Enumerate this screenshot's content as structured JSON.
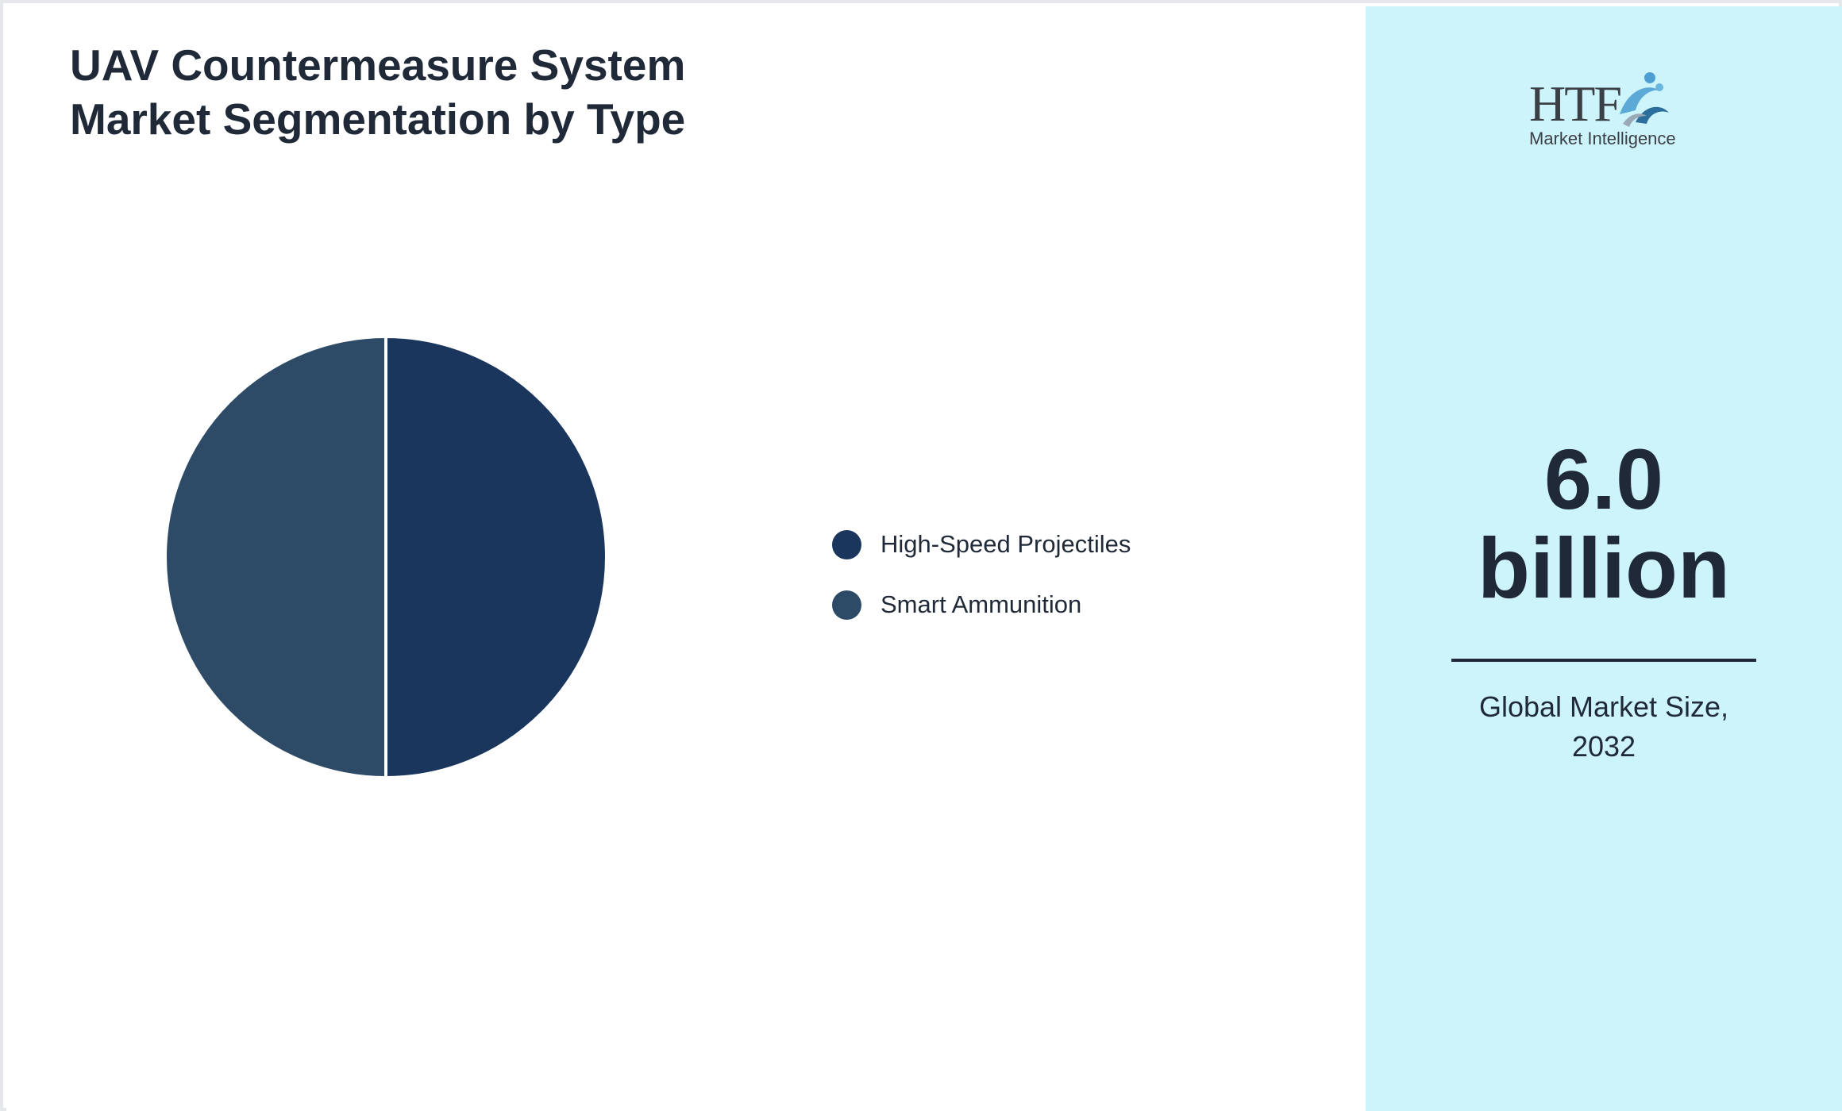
{
  "title_lines": [
    "UAV Countermeasure System",
    "Market Segmentation by Type"
  ],
  "chart_data": {
    "type": "pie",
    "title": "UAV Countermeasure System Market Segmentation by Type",
    "categories": [
      "High-Speed Projectiles",
      "Smart Ammunition"
    ],
    "values": [
      50,
      50
    ],
    "colors": [
      "#1b365d",
      "#2d4a67"
    ],
    "legend_position": "right"
  },
  "logo": {
    "brand": "HTF",
    "subtitle": "Market Intelligence",
    "icon": "htf-swirl-logo-icon"
  },
  "highlight": {
    "value_line1": "6.0",
    "value_line2": "billion",
    "caption_line1": "Global Market Size,",
    "caption_line2": "2032",
    "background": "#cef4fb"
  }
}
